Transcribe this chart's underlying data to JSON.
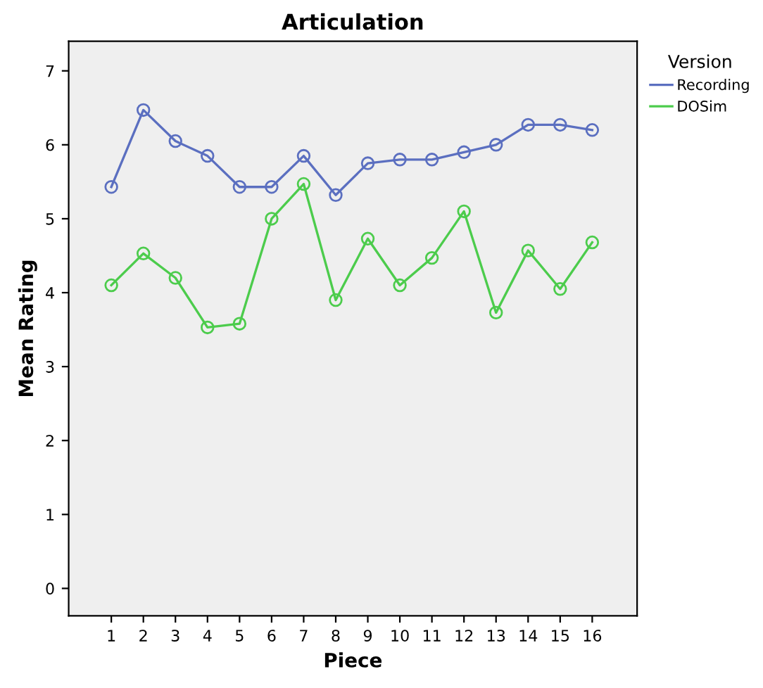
{
  "chart_data": {
    "type": "line",
    "title": "Articulation",
    "xlabel": "Piece",
    "ylabel": "Mean Rating",
    "legend_title": "Version",
    "categories": [
      "1",
      "2",
      "3",
      "4",
      "5",
      "6",
      "7",
      "8",
      "9",
      "10",
      "11",
      "12",
      "13",
      "14",
      "15",
      "16"
    ],
    "series": [
      {
        "name": "Recording",
        "color": "#5b6fc0",
        "values": [
          5.43,
          6.47,
          6.05,
          5.85,
          5.43,
          5.43,
          5.85,
          5.32,
          5.75,
          5.8,
          5.8,
          5.9,
          6.0,
          6.27,
          6.27,
          6.2
        ]
      },
      {
        "name": "DOSim",
        "color": "#4ccc4c",
        "values": [
          4.1,
          4.53,
          4.2,
          3.53,
          3.58,
          5.0,
          5.47,
          3.9,
          4.73,
          4.1,
          4.47,
          5.1,
          3.73,
          4.57,
          4.05,
          4.68
        ]
      }
    ],
    "ylim": [
      -0.37,
      7.4
    ],
    "yticks": [
      0,
      1,
      2,
      3,
      4,
      5,
      6,
      7
    ],
    "marker": "circle",
    "line_style": "solid",
    "grid": false,
    "legend": "top right"
  }
}
